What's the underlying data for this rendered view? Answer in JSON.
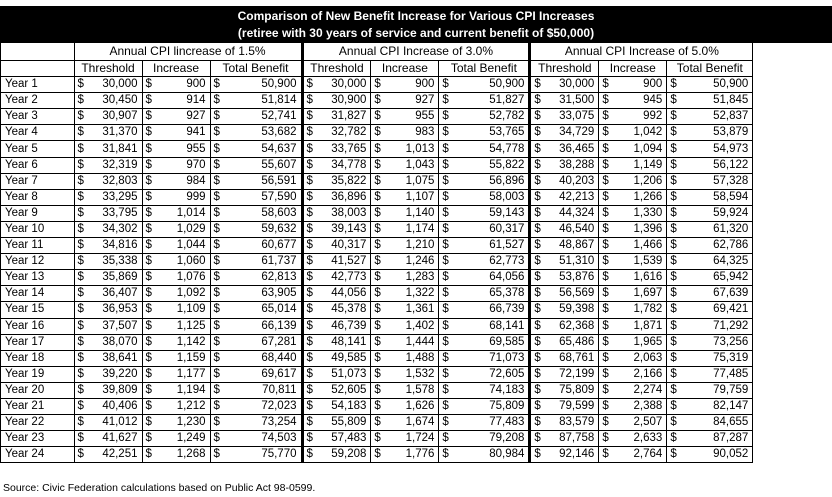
{
  "title_line1": "Comparison of New Benefit Increase for Various CPI Increases",
  "title_line2": "(retiree with 30 years of service and current benefit of $50,000)",
  "group_headers": [
    "Annual CPI lincrease of 1.5%",
    "Annual CPI Increase of 3.0%",
    "Annual CPI Increase of 5.0%"
  ],
  "column_headers": [
    "Threshold",
    "Increase",
    "Total Benefit"
  ],
  "currency_symbol": "$",
  "rows": [
    {
      "year": "Year 1",
      "v": [
        "30,000",
        "900",
        "50,900",
        "30,000",
        "900",
        "50,900",
        "30,000",
        "900",
        "50,900"
      ]
    },
    {
      "year": "Year 2",
      "v": [
        "30,450",
        "914",
        "51,814",
        "30,900",
        "927",
        "51,827",
        "31,500",
        "945",
        "51,845"
      ]
    },
    {
      "year": "Year 3",
      "v": [
        "30,907",
        "927",
        "52,741",
        "31,827",
        "955",
        "52,782",
        "33,075",
        "992",
        "52,837"
      ]
    },
    {
      "year": "Year 4",
      "v": [
        "31,370",
        "941",
        "53,682",
        "32,782",
        "983",
        "53,765",
        "34,729",
        "1,042",
        "53,879"
      ]
    },
    {
      "year": "Year 5",
      "v": [
        "31,841",
        "955",
        "54,637",
        "33,765",
        "1,013",
        "54,778",
        "36,465",
        "1,094",
        "54,973"
      ]
    },
    {
      "year": "Year 6",
      "v": [
        "32,319",
        "970",
        "55,607",
        "34,778",
        "1,043",
        "55,822",
        "38,288",
        "1,149",
        "56,122"
      ]
    },
    {
      "year": "Year 7",
      "v": [
        "32,803",
        "984",
        "56,591",
        "35,822",
        "1,075",
        "56,896",
        "40,203",
        "1,206",
        "57,328"
      ]
    },
    {
      "year": "Year 8",
      "v": [
        "33,295",
        "999",
        "57,590",
        "36,896",
        "1,107",
        "58,003",
        "42,213",
        "1,266",
        "58,594"
      ]
    },
    {
      "year": "Year 9",
      "v": [
        "33,795",
        "1,014",
        "58,603",
        "38,003",
        "1,140",
        "59,143",
        "44,324",
        "1,330",
        "59,924"
      ]
    },
    {
      "year": "Year 10",
      "v": [
        "34,302",
        "1,029",
        "59,632",
        "39,143",
        "1,174",
        "60,317",
        "46,540",
        "1,396",
        "61,320"
      ]
    },
    {
      "year": "Year 11",
      "v": [
        "34,816",
        "1,044",
        "60,677",
        "40,317",
        "1,210",
        "61,527",
        "48,867",
        "1,466",
        "62,786"
      ]
    },
    {
      "year": "Year 12",
      "v": [
        "35,338",
        "1,060",
        "61,737",
        "41,527",
        "1,246",
        "62,773",
        "51,310",
        "1,539",
        "64,325"
      ]
    },
    {
      "year": "Year 13",
      "v": [
        "35,869",
        "1,076",
        "62,813",
        "42,773",
        "1,283",
        "64,056",
        "53,876",
        "1,616",
        "65,942"
      ]
    },
    {
      "year": "Year 14",
      "v": [
        "36,407",
        "1,092",
        "63,905",
        "44,056",
        "1,322",
        "65,378",
        "56,569",
        "1,697",
        "67,639"
      ]
    },
    {
      "year": "Year 15",
      "v": [
        "36,953",
        "1,109",
        "65,014",
        "45,378",
        "1,361",
        "66,739",
        "59,398",
        "1,782",
        "69,421"
      ]
    },
    {
      "year": "Year 16",
      "v": [
        "37,507",
        "1,125",
        "66,139",
        "46,739",
        "1,402",
        "68,141",
        "62,368",
        "1,871",
        "71,292"
      ]
    },
    {
      "year": "Year 17",
      "v": [
        "38,070",
        "1,142",
        "67,281",
        "48,141",
        "1,444",
        "69,585",
        "65,486",
        "1,965",
        "73,256"
      ]
    },
    {
      "year": "Year 18",
      "v": [
        "38,641",
        "1,159",
        "68,440",
        "49,585",
        "1,488",
        "71,073",
        "68,761",
        "2,063",
        "75,319"
      ]
    },
    {
      "year": "Year 19",
      "v": [
        "39,220",
        "1,177",
        "69,617",
        "51,073",
        "1,532",
        "72,605",
        "72,199",
        "2,166",
        "77,485"
      ]
    },
    {
      "year": "Year 20",
      "v": [
        "39,809",
        "1,194",
        "70,811",
        "52,605",
        "1,578",
        "74,183",
        "75,809",
        "2,274",
        "79,759"
      ]
    },
    {
      "year": "Year 21",
      "v": [
        "40,406",
        "1,212",
        "72,023",
        "54,183",
        "1,626",
        "75,809",
        "79,599",
        "2,388",
        "82,147"
      ]
    },
    {
      "year": "Year 22",
      "v": [
        "41,012",
        "1,230",
        "73,254",
        "55,809",
        "1,674",
        "77,483",
        "83,579",
        "2,507",
        "84,655"
      ]
    },
    {
      "year": "Year 23",
      "v": [
        "41,627",
        "1,249",
        "74,503",
        "57,483",
        "1,724",
        "79,208",
        "87,758",
        "2,633",
        "87,287"
      ]
    },
    {
      "year": "Year 24",
      "v": [
        "42,251",
        "1,268",
        "75,770",
        "59,208",
        "1,776",
        "80,984",
        "92,146",
        "2,764",
        "90,052"
      ]
    }
  ],
  "source": "Source: Civic Federation calculations based on Public Act 98-0599."
}
